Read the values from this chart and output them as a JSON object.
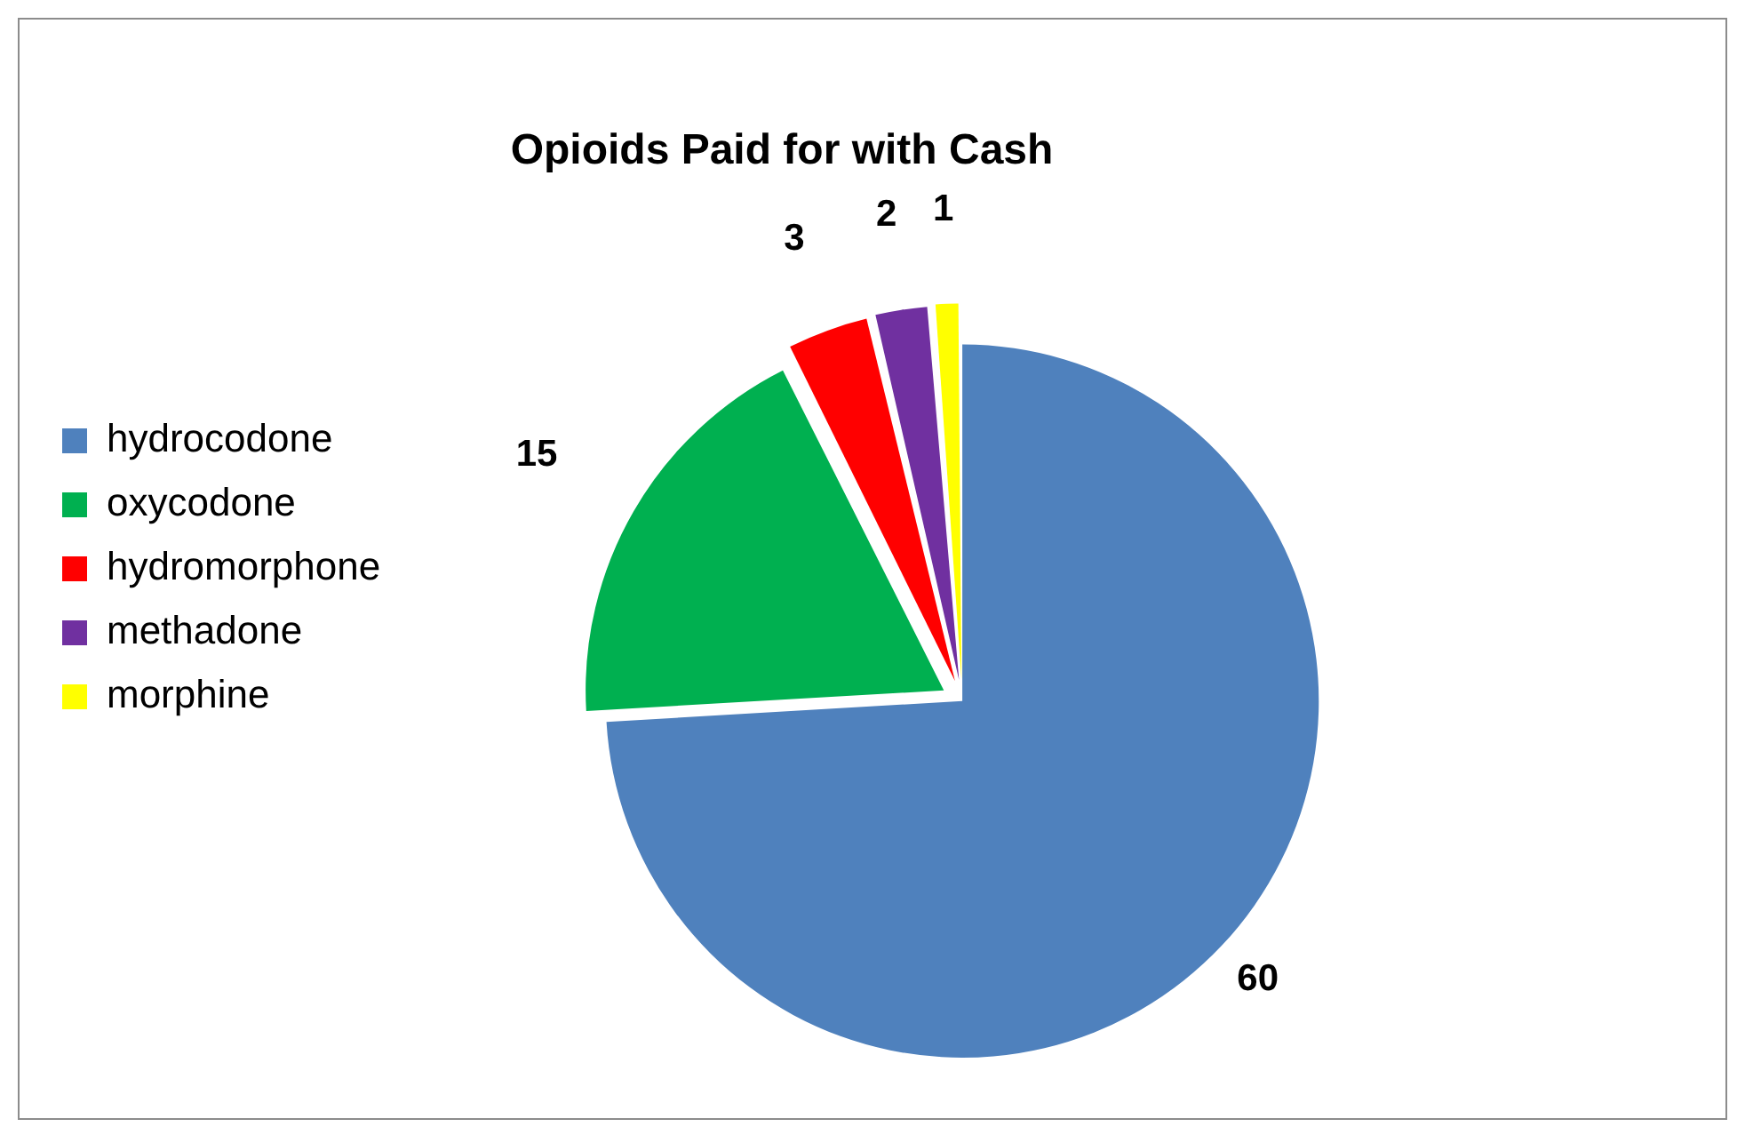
{
  "chart_data": {
    "type": "pie",
    "title": "Opioids Paid for with Cash",
    "categories": [
      "hydrocodone",
      "oxycodone",
      "hydromorphone",
      "methadone",
      "morphine"
    ],
    "values": [
      60,
      15,
      3,
      2,
      1
    ],
    "colors": [
      "#4f81bd",
      "#00b050",
      "#ff0000",
      "#7030a0",
      "#ffff00"
    ],
    "data_labels": true,
    "legend": "left"
  }
}
